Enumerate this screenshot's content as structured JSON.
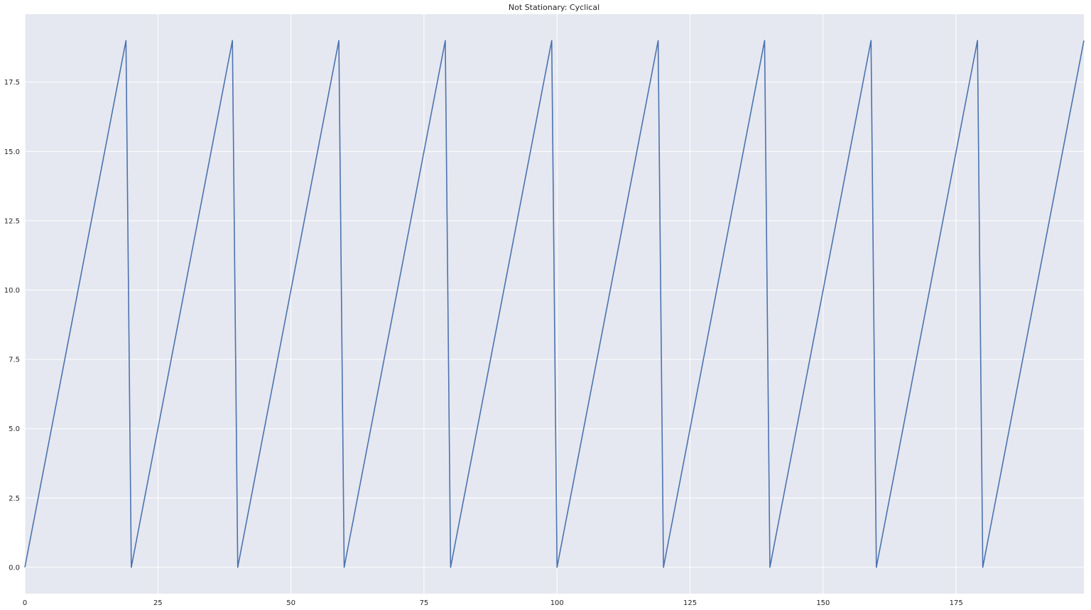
{
  "chart_data": {
    "type": "line",
    "title": "Not Stationary: Cyclical",
    "xlabel": "",
    "ylabel": "",
    "xlim": [
      0,
      199
    ],
    "ylim": [
      -0.95,
      19.95
    ],
    "xticks": [
      0,
      25,
      50,
      75,
      100,
      125,
      150,
      175
    ],
    "xtick_labels": [
      "0",
      "25",
      "50",
      "75",
      "100",
      "125",
      "150",
      "175"
    ],
    "yticks": [
      0.0,
      2.5,
      5.0,
      7.5,
      10.0,
      12.5,
      15.0,
      17.5
    ],
    "ytick_labels": [
      "0.0",
      "2.5",
      "5.0",
      "7.5",
      "10.0",
      "12.5",
      "15.0",
      "17.5"
    ],
    "grid": true,
    "background_color": "#e5e8f0",
    "grid_color": "#ffffff",
    "line_color": "#4c72b0",
    "series": [
      {
        "x": [
          0,
          19,
          20,
          39,
          40,
          59,
          60,
          79,
          80,
          99,
          100,
          119,
          120,
          139,
          140,
          159,
          160,
          179,
          180,
          199
        ],
        "values": [
          0,
          19,
          0,
          19,
          0,
          19,
          0,
          19,
          0,
          19,
          0,
          19,
          0,
          19,
          0,
          19,
          0,
          19,
          0,
          19
        ]
      }
    ]
  }
}
